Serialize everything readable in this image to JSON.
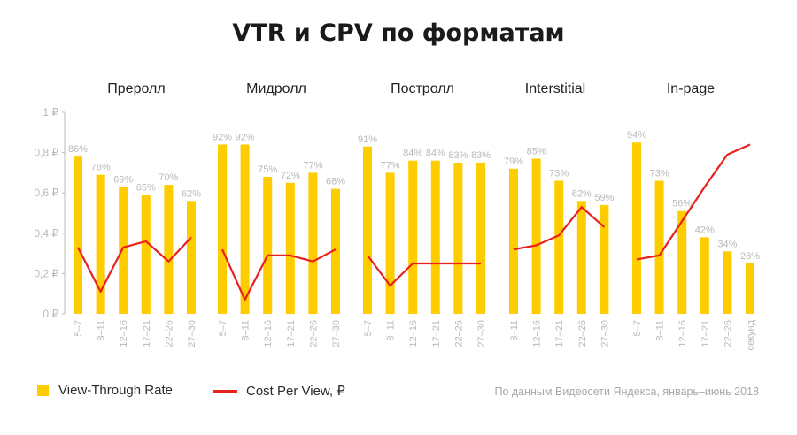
{
  "title": "VTR и CPV по форматам",
  "legend": {
    "vtr": "View-Through Rate",
    "cpv": "Cost Per View, ₽"
  },
  "source": "По данным Видеосети Яндекса, январь–июнь 2018",
  "colors": {
    "bar": "#FFCC00",
    "line": "#E8201E",
    "label": "#b9b9b9",
    "axis": "#bbbbbb"
  },
  "chart_data": {
    "type": "bar+line",
    "title": "VTR и CPV по форматам",
    "ylim": [
      0,
      1
    ],
    "yticks": [
      "0 ₽",
      "0,2 ₽",
      "0,4 ₽",
      "0,6 ₽",
      "0,8 ₽",
      "1 ₽"
    ],
    "grid": false,
    "legend_position": "bottom-left",
    "groups": [
      {
        "name": "Преролл",
        "categories": [
          "5–7",
          "8–11",
          "12–16",
          "17–21",
          "22–26",
          "27–30"
        ],
        "vtr": [
          0.78,
          0.69,
          0.63,
          0.59,
          0.64,
          0.56
        ],
        "vtr_labels": [
          "86%",
          "76%",
          "69%",
          "65%",
          "70%",
          "62%"
        ],
        "cpv": [
          0.33,
          0.11,
          0.33,
          0.36,
          0.26,
          0.38
        ]
      },
      {
        "name": "Мидролл",
        "categories": [
          "5–7",
          "8–11",
          "12–16",
          "17–21",
          "22–26",
          "27–30"
        ],
        "vtr": [
          0.84,
          0.84,
          0.68,
          0.65,
          0.7,
          0.62
        ],
        "vtr_labels": [
          "92%",
          "92%",
          "75%",
          "72%",
          "77%",
          "68%"
        ],
        "cpv": [
          0.32,
          0.07,
          0.29,
          0.29,
          0.26,
          0.32
        ]
      },
      {
        "name": "Постролл",
        "categories": [
          "5–7",
          "8–11",
          "12–16",
          "17–21",
          "22–26",
          "27–30"
        ],
        "vtr": [
          0.83,
          0.7,
          0.76,
          0.76,
          0.75,
          0.75
        ],
        "vtr_labels": [
          "91%",
          "77%",
          "84%",
          "84%",
          "83%",
          "83%"
        ],
        "cpv": [
          0.29,
          0.14,
          0.25,
          0.25,
          0.25,
          0.25
        ]
      },
      {
        "name": "Interstitial",
        "categories": [
          "8–11",
          "12–16",
          "17–21",
          "22–26",
          "27–30"
        ],
        "vtr": [
          0.72,
          0.77,
          0.66,
          0.56,
          0.54
        ],
        "vtr_labels": [
          "79%",
          "85%",
          "73%",
          "62%",
          "59%"
        ],
        "cpv": [
          0.32,
          0.34,
          0.39,
          0.53,
          0.43
        ]
      },
      {
        "name": "In-page",
        "categories": [
          "5–7",
          "8–11",
          "12–16",
          "17–21",
          "22–26",
          "секунд"
        ],
        "vtr": [
          0.85,
          0.66,
          0.51,
          0.38,
          0.31,
          0.25
        ],
        "vtr_labels": [
          "94%",
          "73%",
          "56%",
          "42%",
          "34%",
          "28%"
        ],
        "cpv": [
          0.27,
          0.29,
          0.46,
          0.63,
          0.79,
          0.84
        ]
      }
    ]
  }
}
